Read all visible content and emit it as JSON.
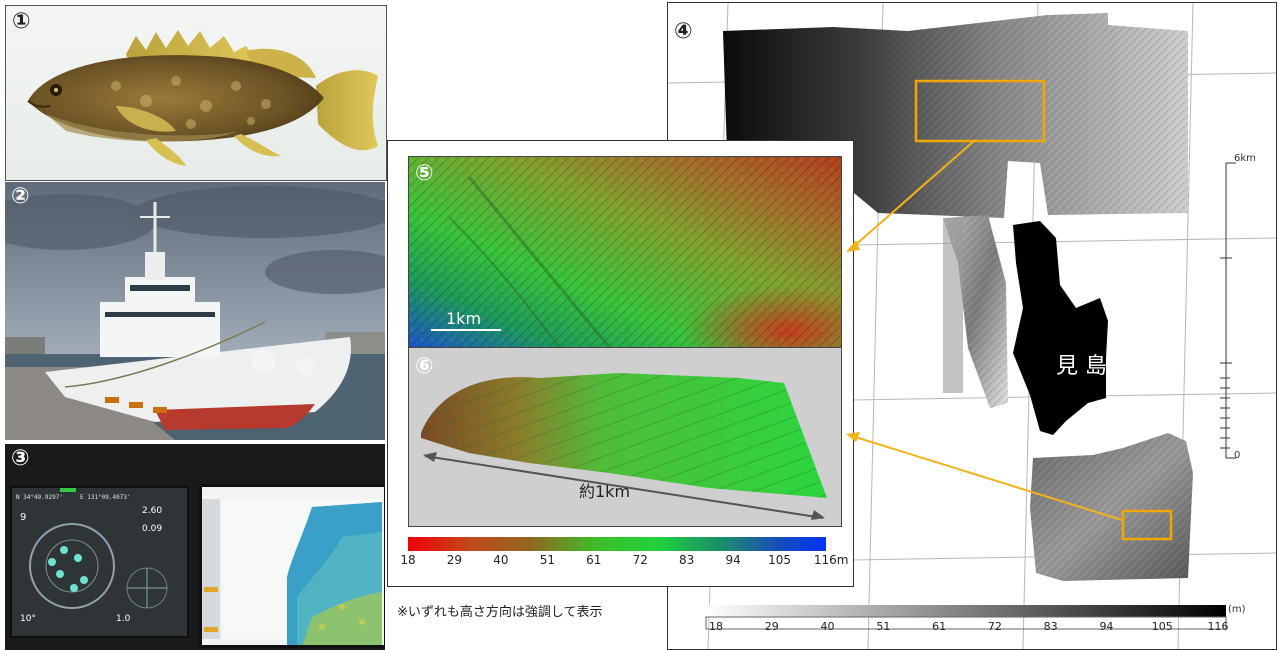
{
  "panels": {
    "fish": {
      "label": "①"
    },
    "ship": {
      "label": "②"
    },
    "monitor": {
      "label": "③",
      "left_screen": {
        "lat": "N 34°49.9297'",
        "lon": "E 131°09.4073'",
        "v1": "2.60",
        "v2": "0.09",
        "v3": "9",
        "v4": "10°",
        "v5": "1.0"
      }
    },
    "map": {
      "label": "④",
      "island": "見 島",
      "scale_top": "6km",
      "scale_bottom": "0"
    },
    "shaded": {
      "label": "⑤",
      "scalebar": "1km"
    },
    "view3d": {
      "label": "⑥",
      "span": "約1km"
    }
  },
  "colorbar": {
    "ticks": [
      "18",
      "29",
      "40",
      "51",
      "61",
      "72",
      "83",
      "94",
      "105",
      "116m"
    ]
  },
  "map_colorbar": {
    "unit": "(m)",
    "ticks": [
      "18",
      "29",
      "40",
      "51",
      "61",
      "72",
      "83",
      "94",
      "105",
      "116"
    ]
  },
  "note": "※いずれも高さ方向は強調して表示",
  "colors": {
    "arrow": "#f2b21a",
    "highlight_box": "#f0a800"
  }
}
